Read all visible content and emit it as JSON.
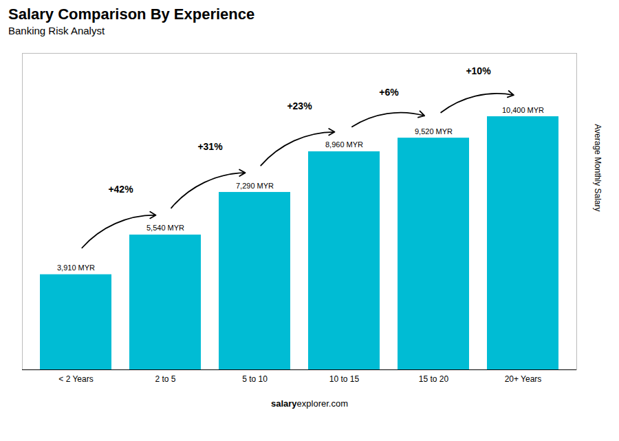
{
  "chart_data": {
    "type": "bar",
    "title": "Salary Comparison By Experience",
    "subtitle": "Banking Risk Analyst",
    "categories": [
      "< 2 Years",
      "2 to 5",
      "5 to 10",
      "10 to 15",
      "15 to 20",
      "20+ Years"
    ],
    "values": [
      3910,
      5540,
      7290,
      8960,
      9520,
      10400
    ],
    "value_labels": [
      "3,910 MYR",
      "5,540 MYR",
      "7,290 MYR",
      "8,960 MYR",
      "9,520 MYR",
      "10,400 MYR"
    ],
    "data_labels": true,
    "color": "#00bcd4",
    "ylabel": "Average Monthly Salary",
    "ylim": [
      0,
      13000
    ],
    "tick_labels": "x",
    "grid": false,
    "annotations": [
      "+42%",
      "+31%",
      "+23%",
      "+6%",
      "+10%"
    ],
    "caption": [
      "salary",
      "explorer.com"
    ]
  }
}
